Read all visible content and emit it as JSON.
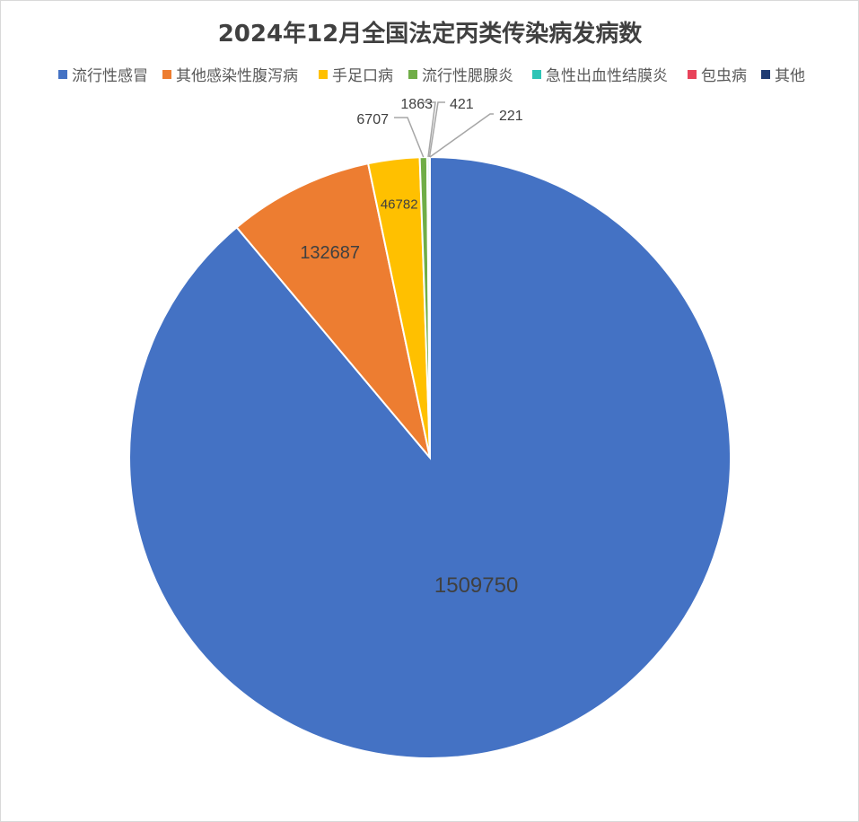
{
  "chart_data": {
    "type": "pie",
    "title": "2024年12月全国法定丙类传染病发病数",
    "legend_position": "top",
    "slices": [
      {
        "name": "流行性感冒",
        "value": 1509750,
        "label": "1509750",
        "color": "#4472C4"
      },
      {
        "name": "其他感染性腹泻病",
        "value": 132687,
        "label": "132687",
        "color": "#ED7D31"
      },
      {
        "name": "手足口病",
        "value": 46782,
        "label": "46782",
        "color": "#FFC000"
      },
      {
        "name": "流行性腮腺炎",
        "value": 6707,
        "label": "6707",
        "color": "#70AD47"
      },
      {
        "name": "急性出血性结膜炎",
        "value": 1863,
        "label": "1863",
        "color": "#2EC4B6"
      },
      {
        "name": "包虫病",
        "value": 421,
        "label": "421",
        "color": "#E8435A"
      },
      {
        "name": "其他",
        "value": 221,
        "label": "221",
        "color": "#1F3B73"
      }
    ]
  }
}
